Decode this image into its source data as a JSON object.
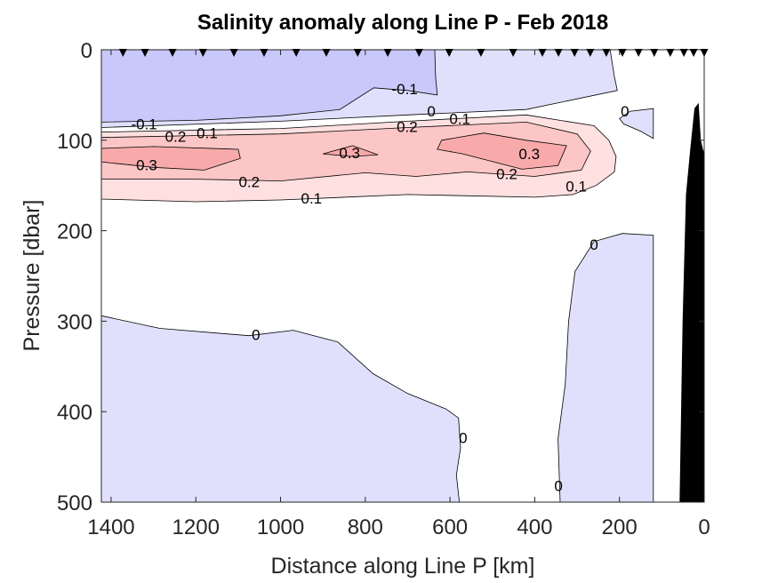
{
  "chart_data": {
    "type": "contour",
    "title": "Salinity anomaly along Line P - Feb 2018",
    "xlabel": "Distance along Line P [km]",
    "ylabel": "Pressure [dbar]",
    "xlim": [
      0,
      1423
    ],
    "x_reversed": true,
    "ylim": [
      0,
      500
    ],
    "y_reversed": true,
    "xticks": [
      1400,
      1200,
      1000,
      800,
      600,
      400,
      200,
      0
    ],
    "yticks": [
      0,
      100,
      200,
      300,
      400,
      500
    ],
    "grid": false,
    "colors": {
      "lt_-0.1": "#c8c8fa",
      "-0.1_0": "#e0e0fc",
      "0_0.1": "#ffffff",
      "0.1_0.2": "#ffe0e0",
      "0.2_0.3": "#fcc6c6",
      "gt_0.3": "#f8aaaa",
      "bathymetry": "#000000"
    },
    "stations_km": [
      1372,
      1320,
      1255,
      1183,
      1110,
      1039,
      963,
      892,
      818,
      747,
      673,
      602,
      527,
      451,
      382,
      344,
      306,
      269,
      231,
      193,
      155,
      118,
      80,
      48,
      25,
      0
    ],
    "regions": [
      {
        "level": "-0.1_0",
        "points": [
          [
            1423,
            0
          ],
          [
            222,
            0
          ],
          [
            212,
            30
          ],
          [
            205,
            45
          ],
          [
            420,
            66
          ],
          [
            700,
            72
          ],
          [
            1000,
            79
          ],
          [
            1423,
            86
          ]
        ]
      },
      {
        "level": "lt_-0.1",
        "points": [
          [
            1423,
            0
          ],
          [
            636,
            0
          ],
          [
            634,
            30
          ],
          [
            630,
            50
          ],
          [
            700,
            45
          ],
          [
            780,
            42
          ],
          [
            860,
            66
          ],
          [
            1000,
            73
          ],
          [
            1200,
            78
          ],
          [
            1423,
            80
          ]
        ]
      },
      {
        "level": "0.1_0.2",
        "points": [
          [
            1423,
            91
          ],
          [
            1000,
            87
          ],
          [
            700,
            79
          ],
          [
            420,
            72
          ],
          [
            260,
            84
          ],
          [
            225,
            100
          ],
          [
            208,
            118
          ],
          [
            212,
            135
          ],
          [
            255,
            150
          ],
          [
            310,
            160
          ],
          [
            400,
            163
          ],
          [
            700,
            160
          ],
          [
            1000,
            166
          ],
          [
            1200,
            168
          ],
          [
            1423,
            165
          ]
        ]
      },
      {
        "level": "0.2_0.3",
        "points": [
          [
            1423,
            97
          ],
          [
            1000,
            93
          ],
          [
            700,
            86
          ],
          [
            420,
            80
          ],
          [
            300,
            93
          ],
          [
            268,
            112
          ],
          [
            290,
            133
          ],
          [
            400,
            140
          ],
          [
            560,
            135
          ],
          [
            680,
            140
          ],
          [
            800,
            136
          ],
          [
            1000,
            145
          ],
          [
            1200,
            143
          ],
          [
            1423,
            143
          ]
        ]
      },
      {
        "level": "gt_0.3",
        "points": [
          [
            1423,
            109
          ],
          [
            1300,
            107
          ],
          [
            1100,
            110
          ],
          [
            1095,
            120
          ],
          [
            1180,
            133
          ],
          [
            1300,
            130
          ],
          [
            1423,
            124
          ]
        ]
      },
      {
        "level": "gt_0.3",
        "points": [
          [
            900,
            115
          ],
          [
            830,
            106
          ],
          [
            770,
            116
          ],
          [
            830,
            118
          ]
        ]
      },
      {
        "level": "gt_0.3",
        "points": [
          [
            620,
            100
          ],
          [
            520,
            92
          ],
          [
            420,
            100
          ],
          [
            325,
            106
          ],
          [
            345,
            128
          ],
          [
            430,
            132
          ],
          [
            570,
            115
          ],
          [
            630,
            110
          ]
        ]
      },
      {
        "level": "-0.1_0",
        "points": [
          [
            200,
            76
          ],
          [
            175,
            68
          ],
          [
            120,
            65
          ],
          [
            120,
            98
          ],
          [
            150,
            90
          ],
          [
            190,
            82
          ]
        ]
      },
      {
        "level": "-0.1_0",
        "points": [
          [
            1423,
            294
          ],
          [
            1285,
            308
          ],
          [
            1075,
            316
          ],
          [
            970,
            310
          ],
          [
            865,
            323
          ],
          [
            782,
            358
          ],
          [
            700,
            380
          ],
          [
            610,
            397
          ],
          [
            580,
            407
          ],
          [
            575,
            440
          ],
          [
            585,
            470
          ],
          [
            578,
            500
          ],
          [
            1423,
            500
          ]
        ]
      },
      {
        "level": "-0.1_0",
        "points": [
          [
            340,
            500
          ],
          [
            345,
            430
          ],
          [
            328,
            370
          ],
          [
            320,
            300
          ],
          [
            305,
            245
          ],
          [
            260,
            212
          ],
          [
            193,
            203
          ],
          [
            120,
            205
          ],
          [
            120,
            500
          ]
        ]
      },
      {
        "level": "bathymetry",
        "points": [
          [
            57,
            500
          ],
          [
            50,
            300
          ],
          [
            42,
            160
          ],
          [
            32,
            110
          ],
          [
            22,
            65
          ],
          [
            14,
            60
          ],
          [
            9,
            100
          ],
          [
            3,
            112
          ],
          [
            0,
            112
          ],
          [
            0,
            500
          ]
        ]
      }
    ],
    "contour_labels": [
      {
        "text": "-0.1",
        "x": 707,
        "y": 43
      },
      {
        "text": "0",
        "x": 644,
        "y": 68
      },
      {
        "text": "0.1",
        "x": 623,
        "y": 76
      },
      {
        "text": "0.2",
        "x": 655,
        "y": 85
      },
      {
        "text": "-0.1",
        "x": 1322,
        "y": 82
      },
      {
        "text": "0.2",
        "x": 1294,
        "y": 96
      },
      {
        "text": "0.1",
        "x": 1253,
        "y": 92
      },
      {
        "text": "0.3",
        "x": 1316,
        "y": 127
      },
      {
        "text": "0.3",
        "x": 837,
        "y": 114
      },
      {
        "text": "0.3",
        "x": 413,
        "y": 115
      },
      {
        "text": "0.2",
        "x": 1074,
        "y": 146
      },
      {
        "text": "0.2",
        "x": 466,
        "y": 137
      },
      {
        "text": "0.1",
        "x": 927,
        "y": 164
      },
      {
        "text": "0.1",
        "x": 302,
        "y": 151
      },
      {
        "text": "0",
        "x": 187,
        "y": 68
      },
      {
        "text": "0",
        "x": 260,
        "y": 215
      },
      {
        "text": "0",
        "x": 1058,
        "y": 315
      },
      {
        "text": "0",
        "x": 569,
        "y": 429
      },
      {
        "text": "0",
        "x": 344,
        "y": 482
      }
    ]
  }
}
